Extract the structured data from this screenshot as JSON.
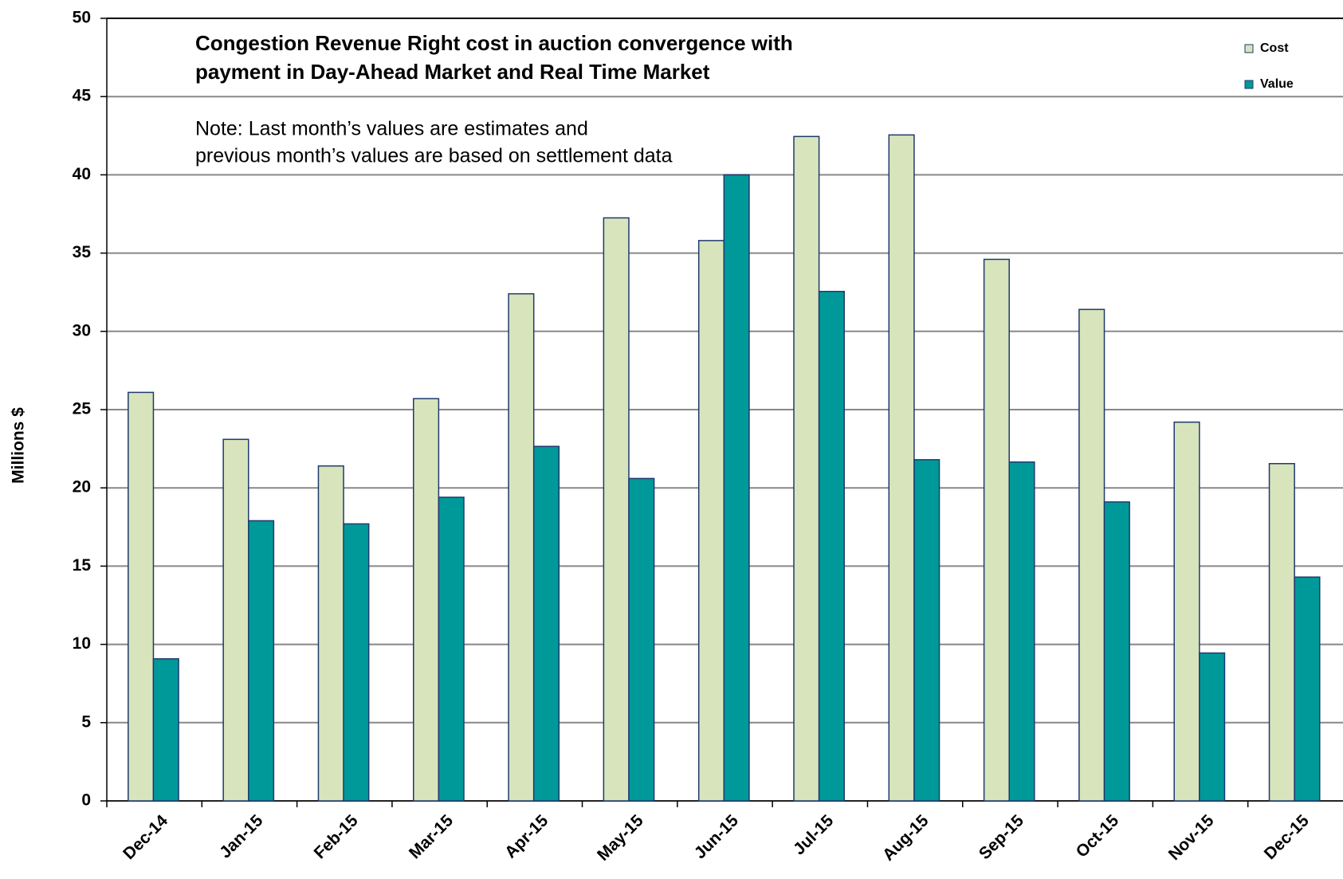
{
  "chart_data": {
    "type": "bar",
    "title": [
      "Congestion Revenue Right cost in auction convergence with",
      "payment in Day-Ahead Market and Real Time Market"
    ],
    "annotation": [
      "Note: Last month’s values are estimates and",
      "previous month’s values are based on settlement data"
    ],
    "y_label": "Millions $",
    "categories": [
      "Dec-14",
      "Jan-15",
      "Feb-15",
      "Mar-15",
      "Apr-15",
      "May-15",
      "Jun-15",
      "Jul-15",
      "Aug-15",
      "Sep-15",
      "Oct-15",
      "Nov-15",
      "Dec-15"
    ],
    "series": [
      {
        "name": "Cost",
        "color": "#d8e4bc",
        "values": [
          26.1,
          23.1,
          21.4,
          25.7,
          32.4,
          37.25,
          35.8,
          42.45,
          42.55,
          34.6,
          31.4,
          24.2,
          21.55
        ]
      },
      {
        "name": "Value",
        "color": "#009999",
        "values": [
          9.08,
          17.9,
          17.7,
          19.4,
          22.65,
          20.6,
          40.0,
          32.55,
          21.8,
          21.65,
          19.1,
          9.45,
          14.3
        ]
      }
    ],
    "bar_edge_color": "#1f3a6e",
    "ylim": [
      0,
      50
    ],
    "yticks": [
      0,
      5,
      10,
      15,
      20,
      25,
      30,
      35,
      40,
      45,
      50
    ],
    "grid": true,
    "legend": "upper right"
  }
}
